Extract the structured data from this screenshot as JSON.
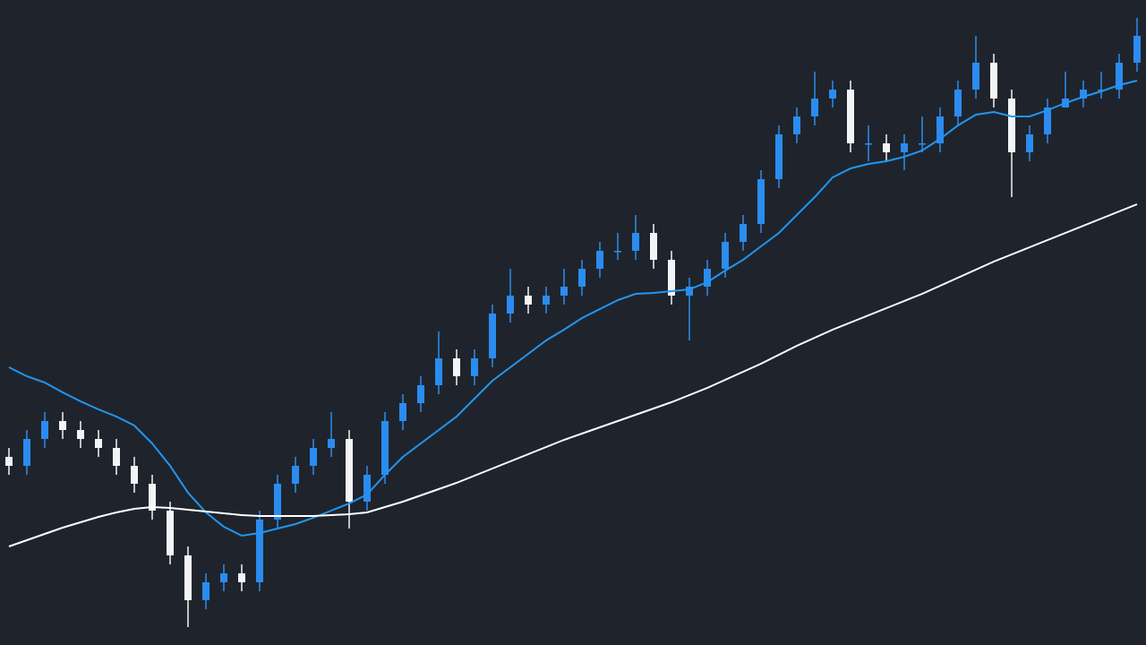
{
  "chart_data": {
    "type": "candlestick",
    "ylim": [
      0,
      720
    ],
    "up_color": "#2b8cf0",
    "down_color": "#f2f4f7",
    "open": [
      210,
      200,
      230,
      250,
      240,
      230,
      220,
      200,
      180,
      150,
      100,
      50,
      70,
      80,
      70,
      140,
      180,
      200,
      220,
      230,
      160,
      190,
      250,
      270,
      290,
      320,
      300,
      320,
      370,
      390,
      380,
      390,
      400,
      420,
      440,
      440,
      460,
      430,
      390,
      400,
      420,
      450,
      470,
      520,
      570,
      590,
      610,
      620,
      560,
      560,
      550,
      560,
      560,
      590,
      620,
      650,
      610,
      550,
      570,
      600,
      610,
      620,
      620,
      650
    ],
    "high": [
      220,
      240,
      260,
      260,
      250,
      240,
      230,
      210,
      190,
      160,
      110,
      80,
      90,
      90,
      150,
      190,
      210,
      230,
      260,
      240,
      200,
      260,
      280,
      300,
      350,
      330,
      330,
      380,
      420,
      400,
      400,
      420,
      430,
      450,
      460,
      480,
      470,
      440,
      410,
      430,
      460,
      480,
      530,
      580,
      600,
      640,
      630,
      630,
      580,
      570,
      570,
      590,
      600,
      630,
      680,
      660,
      620,
      580,
      610,
      640,
      630,
      640,
      660,
      700
    ],
    "low": [
      190,
      190,
      220,
      230,
      220,
      210,
      190,
      170,
      140,
      90,
      20,
      40,
      60,
      60,
      60,
      130,
      170,
      190,
      210,
      130,
      150,
      180,
      240,
      260,
      280,
      290,
      290,
      310,
      360,
      370,
      370,
      380,
      390,
      410,
      430,
      430,
      420,
      380,
      340,
      390,
      410,
      440,
      460,
      510,
      560,
      580,
      600,
      550,
      540,
      540,
      530,
      550,
      550,
      580,
      610,
      600,
      500,
      540,
      560,
      600,
      600,
      610,
      610,
      640
    ],
    "close": [
      200,
      230,
      250,
      240,
      230,
      220,
      200,
      180,
      150,
      100,
      50,
      70,
      80,
      70,
      140,
      180,
      200,
      220,
      230,
      160,
      190,
      250,
      270,
      290,
      320,
      300,
      320,
      370,
      390,
      380,
      390,
      400,
      420,
      440,
      440,
      460,
      430,
      390,
      400,
      420,
      450,
      470,
      520,
      570,
      590,
      610,
      620,
      560,
      560,
      550,
      560,
      560,
      590,
      620,
      650,
      610,
      550,
      570,
      600,
      610,
      620,
      620,
      650,
      680
    ],
    "lines": [
      {
        "color": "#2196f3",
        "values": [
          310,
          300,
          293,
          282,
          272,
          263,
          255,
          245,
          225,
          200,
          170,
          148,
          132,
          122,
          125,
          130,
          135,
          142,
          150,
          158,
          168,
          190,
          210,
          225,
          240,
          255,
          275,
          295,
          310,
          325,
          340,
          352,
          365,
          375,
          385,
          392,
          393,
          395,
          397,
          405,
          418,
          430,
          445,
          460,
          480,
          500,
          522,
          532,
          537,
          540,
          545,
          552,
          565,
          580,
          592,
          595,
          590,
          590,
          597,
          605,
          612,
          618,
          625,
          630
        ]
      },
      {
        "color": "#ffffff",
        "values": [
          110,
          117,
          124,
          131,
          137,
          143,
          148,
          152,
          154,
          153,
          151,
          149,
          147,
          145,
          144,
          144,
          144,
          144,
          145,
          146,
          148,
          154,
          160,
          167,
          174,
          181,
          189,
          197,
          205,
          213,
          221,
          229,
          236,
          243,
          250,
          257,
          264,
          271,
          279,
          287,
          296,
          305,
          314,
          324,
          334,
          343,
          352,
          360,
          368,
          376,
          384,
          392,
          401,
          410,
          419,
          428,
          436,
          444,
          452,
          460,
          468,
          476,
          484,
          492
        ]
      }
    ]
  }
}
